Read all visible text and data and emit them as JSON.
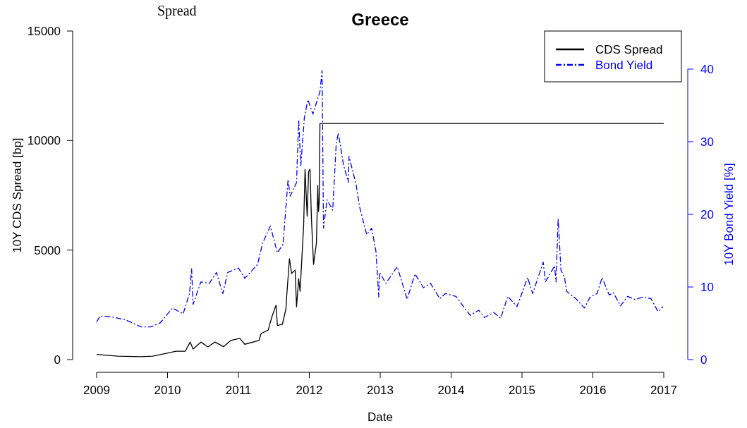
{
  "chart_data": {
    "type": "line",
    "title": "Greece",
    "xlabel": "Date",
    "ylabel": "10Y CDS Spread [bp]",
    "y2label": "10Y Bond Yield [%]",
    "annotations": [
      "Spread"
    ],
    "xlim": [
      2009,
      2017
    ],
    "xticks": [
      2009,
      2010,
      2011,
      2012,
      2013,
      2014,
      2015,
      2016,
      2017
    ],
    "ylim": [
      0,
      15000
    ],
    "yticks": [
      0,
      5000,
      10000,
      15000
    ],
    "y2lim": [
      0,
      40
    ],
    "y2ticks": [
      0,
      10,
      20,
      30,
      40
    ],
    "grid": false,
    "legend": "top right",
    "series": [
      {
        "name": "CDS Spread",
        "color": "#000000",
        "line_style": "solid",
        "x": [
          2009.0,
          2009.3,
          2009.63,
          2009.79,
          2009.96,
          2010.12,
          2010.25,
          2010.32,
          2010.36,
          2010.47,
          2010.57,
          2010.67,
          2010.79,
          2010.89,
          2011.02,
          2011.09,
          2011.29,
          2011.32,
          2011.42,
          2011.47,
          2011.53,
          2011.55,
          2011.62,
          2011.67,
          2011.68,
          2011.72,
          2011.75,
          2011.8,
          2011.82,
          2011.85,
          2011.87,
          2011.9,
          2011.92,
          2011.94,
          2011.97,
          2011.99,
          2012.01,
          2012.03,
          2012.06,
          2012.1,
          2012.12,
          2012.13,
          2012.14,
          2012.15,
          2017.0
        ],
        "values": [
          235,
          160,
          130,
          160,
          270,
          380,
          380,
          800,
          480,
          800,
          580,
          800,
          590,
          870,
          970,
          700,
          870,
          1190,
          1350,
          1930,
          2480,
          1560,
          1610,
          2310,
          2840,
          4610,
          3930,
          4090,
          2410,
          3700,
          3120,
          4930,
          6110,
          8690,
          6540,
          8580,
          8690,
          6440,
          4350,
          5310,
          7950,
          6760,
          7200,
          10780,
          10780
        ]
      },
      {
        "name": "Bond Yield",
        "color": "#0000ff",
        "line_style": "dashed",
        "axis": "y2",
        "x": [
          2009.0,
          2009.05,
          2009.2,
          2009.4,
          2009.63,
          2009.76,
          2009.89,
          2009.96,
          2010.07,
          2010.22,
          2010.31,
          2010.34,
          2010.36,
          2010.47,
          2010.59,
          2010.69,
          2010.78,
          2010.85,
          2011.0,
          2011.09,
          2011.27,
          2011.34,
          2011.45,
          2011.55,
          2011.63,
          2011.7,
          2011.73,
          2011.82,
          2011.85,
          2011.88,
          2011.93,
          2011.98,
          2012.05,
          2012.15,
          2012.18,
          2012.2,
          2012.25,
          2012.33,
          2012.38,
          2012.41,
          2012.48,
          2012.55,
          2012.56,
          2012.66,
          2012.71,
          2012.81,
          2012.88,
          2012.94,
          2012.98,
          2012.99,
          2013.08,
          2013.24,
          2013.38,
          2013.49,
          2013.61,
          2013.71,
          2013.84,
          2013.92,
          2014.07,
          2014.19,
          2014.27,
          2014.39,
          2014.47,
          2014.6,
          2014.7,
          2014.8,
          2014.93,
          2015.08,
          2015.15,
          2015.3,
          2015.33,
          2015.46,
          2015.48,
          2015.51,
          2015.55,
          2015.6,
          2015.63,
          2015.76,
          2015.88,
          2015.96,
          2016.06,
          2016.13,
          2016.23,
          2016.29,
          2016.39,
          2016.49,
          2016.59,
          2016.71,
          2016.82,
          2016.92,
          2016.99
        ],
        "values": [
          5.2,
          6.0,
          5.9,
          5.5,
          4.5,
          4.5,
          5.0,
          5.8,
          7.1,
          6.3,
          9.1,
          12.5,
          7.6,
          10.7,
          10.5,
          12.0,
          9.1,
          12.0,
          12.6,
          11.2,
          13.1,
          16.0,
          18.4,
          14.7,
          15.9,
          24.8,
          22.5,
          24.4,
          33.0,
          26.7,
          33.3,
          35.8,
          33.8,
          36.9,
          39.8,
          18.1,
          22.0,
          20.6,
          29.8,
          31.2,
          26.9,
          24.4,
          28.0,
          24.1,
          21.0,
          17.2,
          18.1,
          14.9,
          8.6,
          12.0,
          10.5,
          12.8,
          8.3,
          11.8,
          9.9,
          10.5,
          8.4,
          9.1,
          8.7,
          7.1,
          6.1,
          6.8,
          5.8,
          6.5,
          5.7,
          8.7,
          7.3,
          11.3,
          9.1,
          13.4,
          10.7,
          12.9,
          10.7,
          19.4,
          12.3,
          11.3,
          9.4,
          8.4,
          7.1,
          8.6,
          9.1,
          11.3,
          8.9,
          9.2,
          7.4,
          8.7,
          8.3,
          8.6,
          8.4,
          6.6,
          7.3
        ]
      }
    ]
  }
}
